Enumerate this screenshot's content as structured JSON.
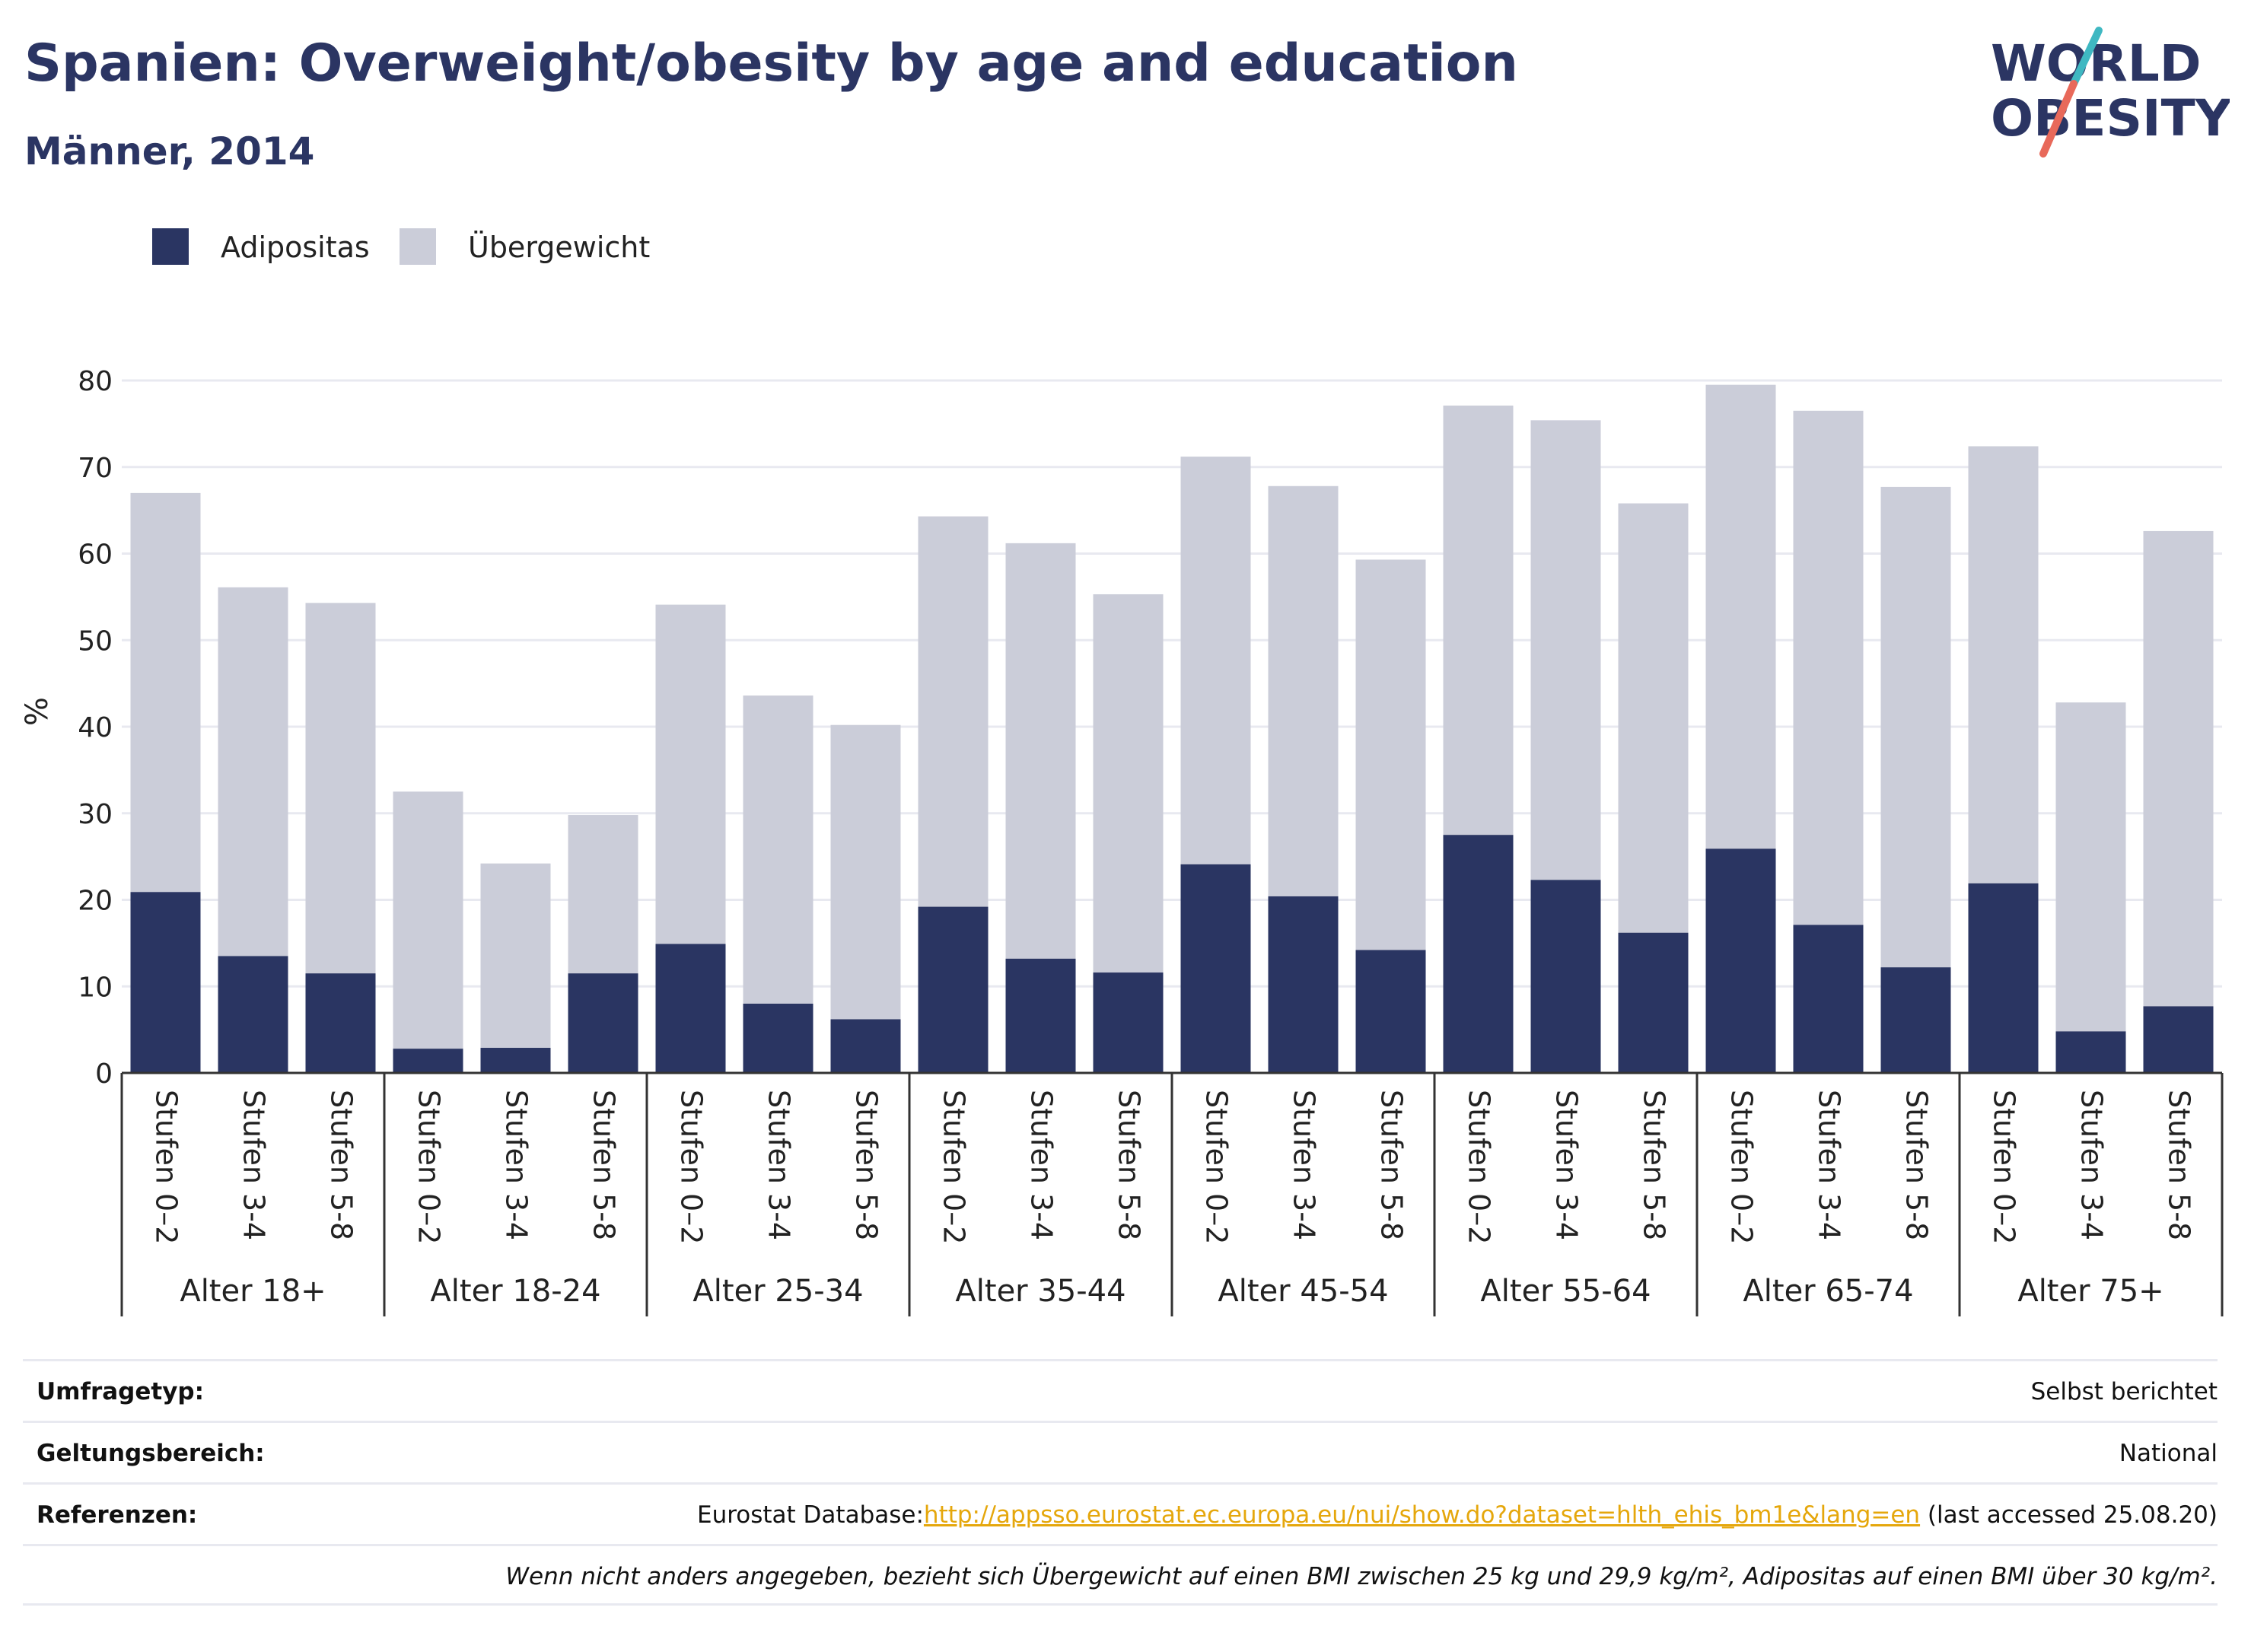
{
  "header": {
    "title": "Spanien: Overweight/obesity by age and education",
    "subtitle": "Männer, 2014"
  },
  "logo": {
    "line1": "WORLD",
    "line2": "OBESITY",
    "colors": {
      "text": "#2b3563",
      "slash_top": "#3fb8c2",
      "slash_bottom": "#e8695a"
    }
  },
  "colors": {
    "obesity": "#2a3562",
    "overweight": "#cbcdd9",
    "grid": "#e8e9f0",
    "axis": "#333333"
  },
  "chart_data": {
    "type": "bar",
    "stacked": true,
    "ylabel": "%",
    "ylim": [
      0,
      80
    ],
    "yticks": [
      0,
      10,
      20,
      30,
      40,
      50,
      60,
      70,
      80
    ],
    "grid": true,
    "legend_placement": "top-left",
    "legend": [
      "Adipositas",
      "Übergewicht"
    ],
    "groups": [
      {
        "label": "Alter 18+",
        "bars": [
          {
            "label": "Stufen 0–2",
            "obesity": 20.9,
            "total": 67.0
          },
          {
            "label": "Stufen 3-4",
            "obesity": 13.5,
            "total": 56.1
          },
          {
            "label": "Stufen 5-8",
            "obesity": 11.5,
            "total": 54.3
          }
        ]
      },
      {
        "label": "Alter 18-24",
        "bars": [
          {
            "label": "Stufen 0–2",
            "obesity": 2.8,
            "total": 32.5
          },
          {
            "label": "Stufen 3-4",
            "obesity": 2.9,
            "total": 24.2
          },
          {
            "label": "Stufen 5-8",
            "obesity": 11.5,
            "total": 29.8
          }
        ]
      },
      {
        "label": "Alter 25-34",
        "bars": [
          {
            "label": "Stufen 0–2",
            "obesity": 14.9,
            "total": 54.1
          },
          {
            "label": "Stufen 3-4",
            "obesity": 8.0,
            "total": 43.6
          },
          {
            "label": "Stufen 5-8",
            "obesity": 6.2,
            "total": 40.2
          }
        ]
      },
      {
        "label": "Alter 35-44",
        "bars": [
          {
            "label": "Stufen 0–2",
            "obesity": 19.2,
            "total": 64.3
          },
          {
            "label": "Stufen 3-4",
            "obesity": 13.2,
            "total": 61.2
          },
          {
            "label": "Stufen 5-8",
            "obesity": 11.6,
            "total": 55.3
          }
        ]
      },
      {
        "label": "Alter 45-54",
        "bars": [
          {
            "label": "Stufen 0–2",
            "obesity": 24.1,
            "total": 71.2
          },
          {
            "label": "Stufen 3-4",
            "obesity": 20.4,
            "total": 67.8
          },
          {
            "label": "Stufen 5-8",
            "obesity": 14.2,
            "total": 59.3
          }
        ]
      },
      {
        "label": "Alter 55-64",
        "bars": [
          {
            "label": "Stufen 0–2",
            "obesity": 27.5,
            "total": 77.1
          },
          {
            "label": "Stufen 3-4",
            "obesity": 22.3,
            "total": 75.4
          },
          {
            "label": "Stufen 5-8",
            "obesity": 16.2,
            "total": 65.8
          }
        ]
      },
      {
        "label": "Alter 65-74",
        "bars": [
          {
            "label": "Stufen 0–2",
            "obesity": 25.9,
            "total": 79.5
          },
          {
            "label": "Stufen 3-4",
            "obesity": 17.1,
            "total": 76.5
          },
          {
            "label": "Stufen 5-8",
            "obesity": 12.2,
            "total": 67.7
          }
        ]
      },
      {
        "label": "Alter 75+",
        "bars": [
          {
            "label": "Stufen 0–2",
            "obesity": 21.9,
            "total": 72.4
          },
          {
            "label": "Stufen 3-4",
            "obesity": 4.8,
            "total": 42.8
          },
          {
            "label": "Stufen 5-8",
            "obesity": 7.7,
            "total": 62.6
          }
        ]
      }
    ]
  },
  "info": {
    "survey_type_label": "Umfragetyp:",
    "survey_type_value": "Selbst berichtet",
    "scope_label": "Geltungsbereich:",
    "scope_value": "National",
    "references_label": "Referenzen:",
    "references_prefix": "Eurostat Database:",
    "references_link": "http://appsso.eurostat.ec.europa.eu/nui/show.do?dataset=hlth_ehis_bm1e&lang=en",
    "references_suffix": " (last accessed 25.08.20)",
    "note": "Wenn nicht anders angegeben, bezieht sich Übergewicht auf einen BMI zwischen 25 kg und 29,9 kg/m², Adipositas auf einen BMI über 30 kg/m²."
  }
}
